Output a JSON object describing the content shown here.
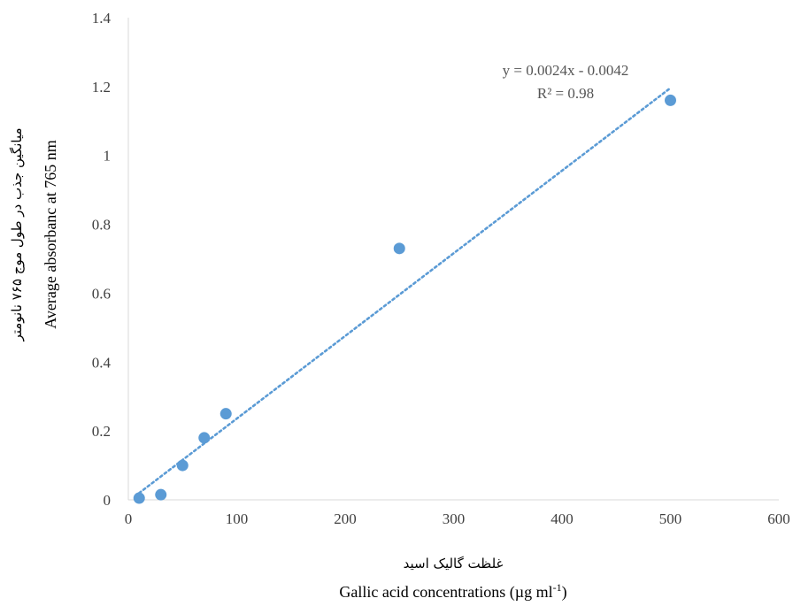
{
  "chart_data": {
    "type": "scatter",
    "points": [
      {
        "x": 10,
        "y": 0.005
      },
      {
        "x": 30,
        "y": 0.015
      },
      {
        "x": 50,
        "y": 0.1
      },
      {
        "x": 70,
        "y": 0.18
      },
      {
        "x": 90,
        "y": 0.25
      },
      {
        "x": 250,
        "y": 0.73
      },
      {
        "x": 500,
        "y": 1.16
      }
    ],
    "trendline": {
      "type": "linear",
      "style": "dotted",
      "slope": 0.0024,
      "intercept": -0.0042,
      "x_range": [
        10,
        500
      ],
      "equation": "y = 0.0024x - 0.0042",
      "r_squared": "R² = 0.98"
    },
    "xlim": [
      0,
      600
    ],
    "ylim": [
      0,
      1.4
    ],
    "x_ticks": [
      0,
      100,
      200,
      300,
      400,
      500,
      600
    ],
    "y_ticks": [
      0,
      0.2,
      0.4,
      0.6,
      0.8,
      1,
      1.2,
      1.4
    ],
    "xlabel_fa": "غلظت گالیک اسید",
    "xlabel_prefix": "Gallic acid concentrations (µg ml",
    "xlabel_sup": "-1",
    "xlabel_suffix": ")",
    "ylabel_fa": "میانگین جذب در طول موج ۷۶۵ نانومتر",
    "ylabel": "Average absorbanc at 765 nm",
    "grid": false,
    "colors": {
      "points": "#5b9bd5",
      "trendline": "#5b9bd5",
      "axis": "#d9d9d9"
    }
  }
}
